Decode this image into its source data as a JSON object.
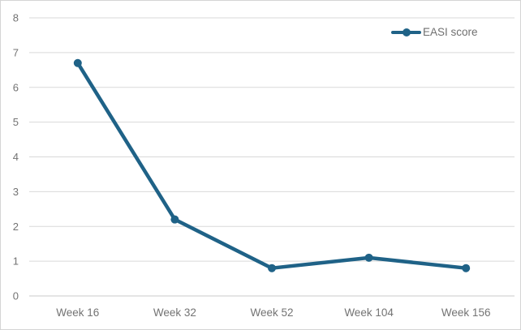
{
  "chart_data": {
    "type": "line",
    "title": "",
    "categories": [
      "Week 16",
      "Week 32",
      "Week 52",
      "Week 104",
      "Week 156"
    ],
    "series": [
      {
        "name": "EASI score",
        "values": [
          6.7,
          2.2,
          0.8,
          1.1,
          0.8
        ],
        "color": "#1f6287"
      }
    ],
    "ylim": [
      0,
      8
    ],
    "yticks": [
      0,
      1,
      2,
      3,
      4,
      5,
      6,
      7,
      8
    ],
    "grid": "horizontal",
    "legend_position": "top-right",
    "colors": {
      "line": "#1f6287",
      "axis_text": "#737373",
      "gridline": "#d9d9d9",
      "baseline": "#c9c9c9",
      "border": "#d4d4d4",
      "background": "#ffffff"
    }
  }
}
